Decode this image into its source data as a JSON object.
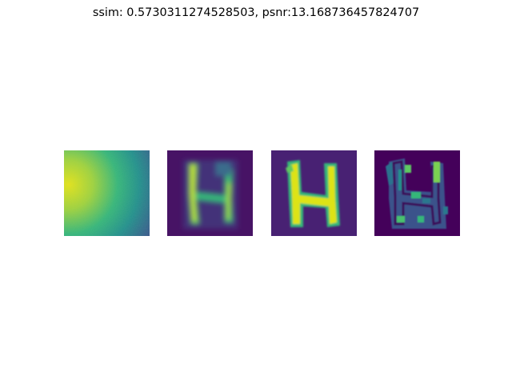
{
  "figure": {
    "title": "ssim: 0.5730311274528503, psnr:13.168736457824707"
  },
  "panels": [
    {
      "content": "input gradient field (yellow left to blue right)"
    },
    {
      "content": "blurry letter H prediction"
    },
    {
      "content": "sharp letter H target"
    },
    {
      "content": "difference map of letter H"
    }
  ],
  "colors": {
    "background": "#440154",
    "low": "#3b0f70",
    "mid": "#21918c",
    "high": "#fde725",
    "gradient_left": "#d7e21a",
    "gradient_right": "#3c5a8c"
  }
}
